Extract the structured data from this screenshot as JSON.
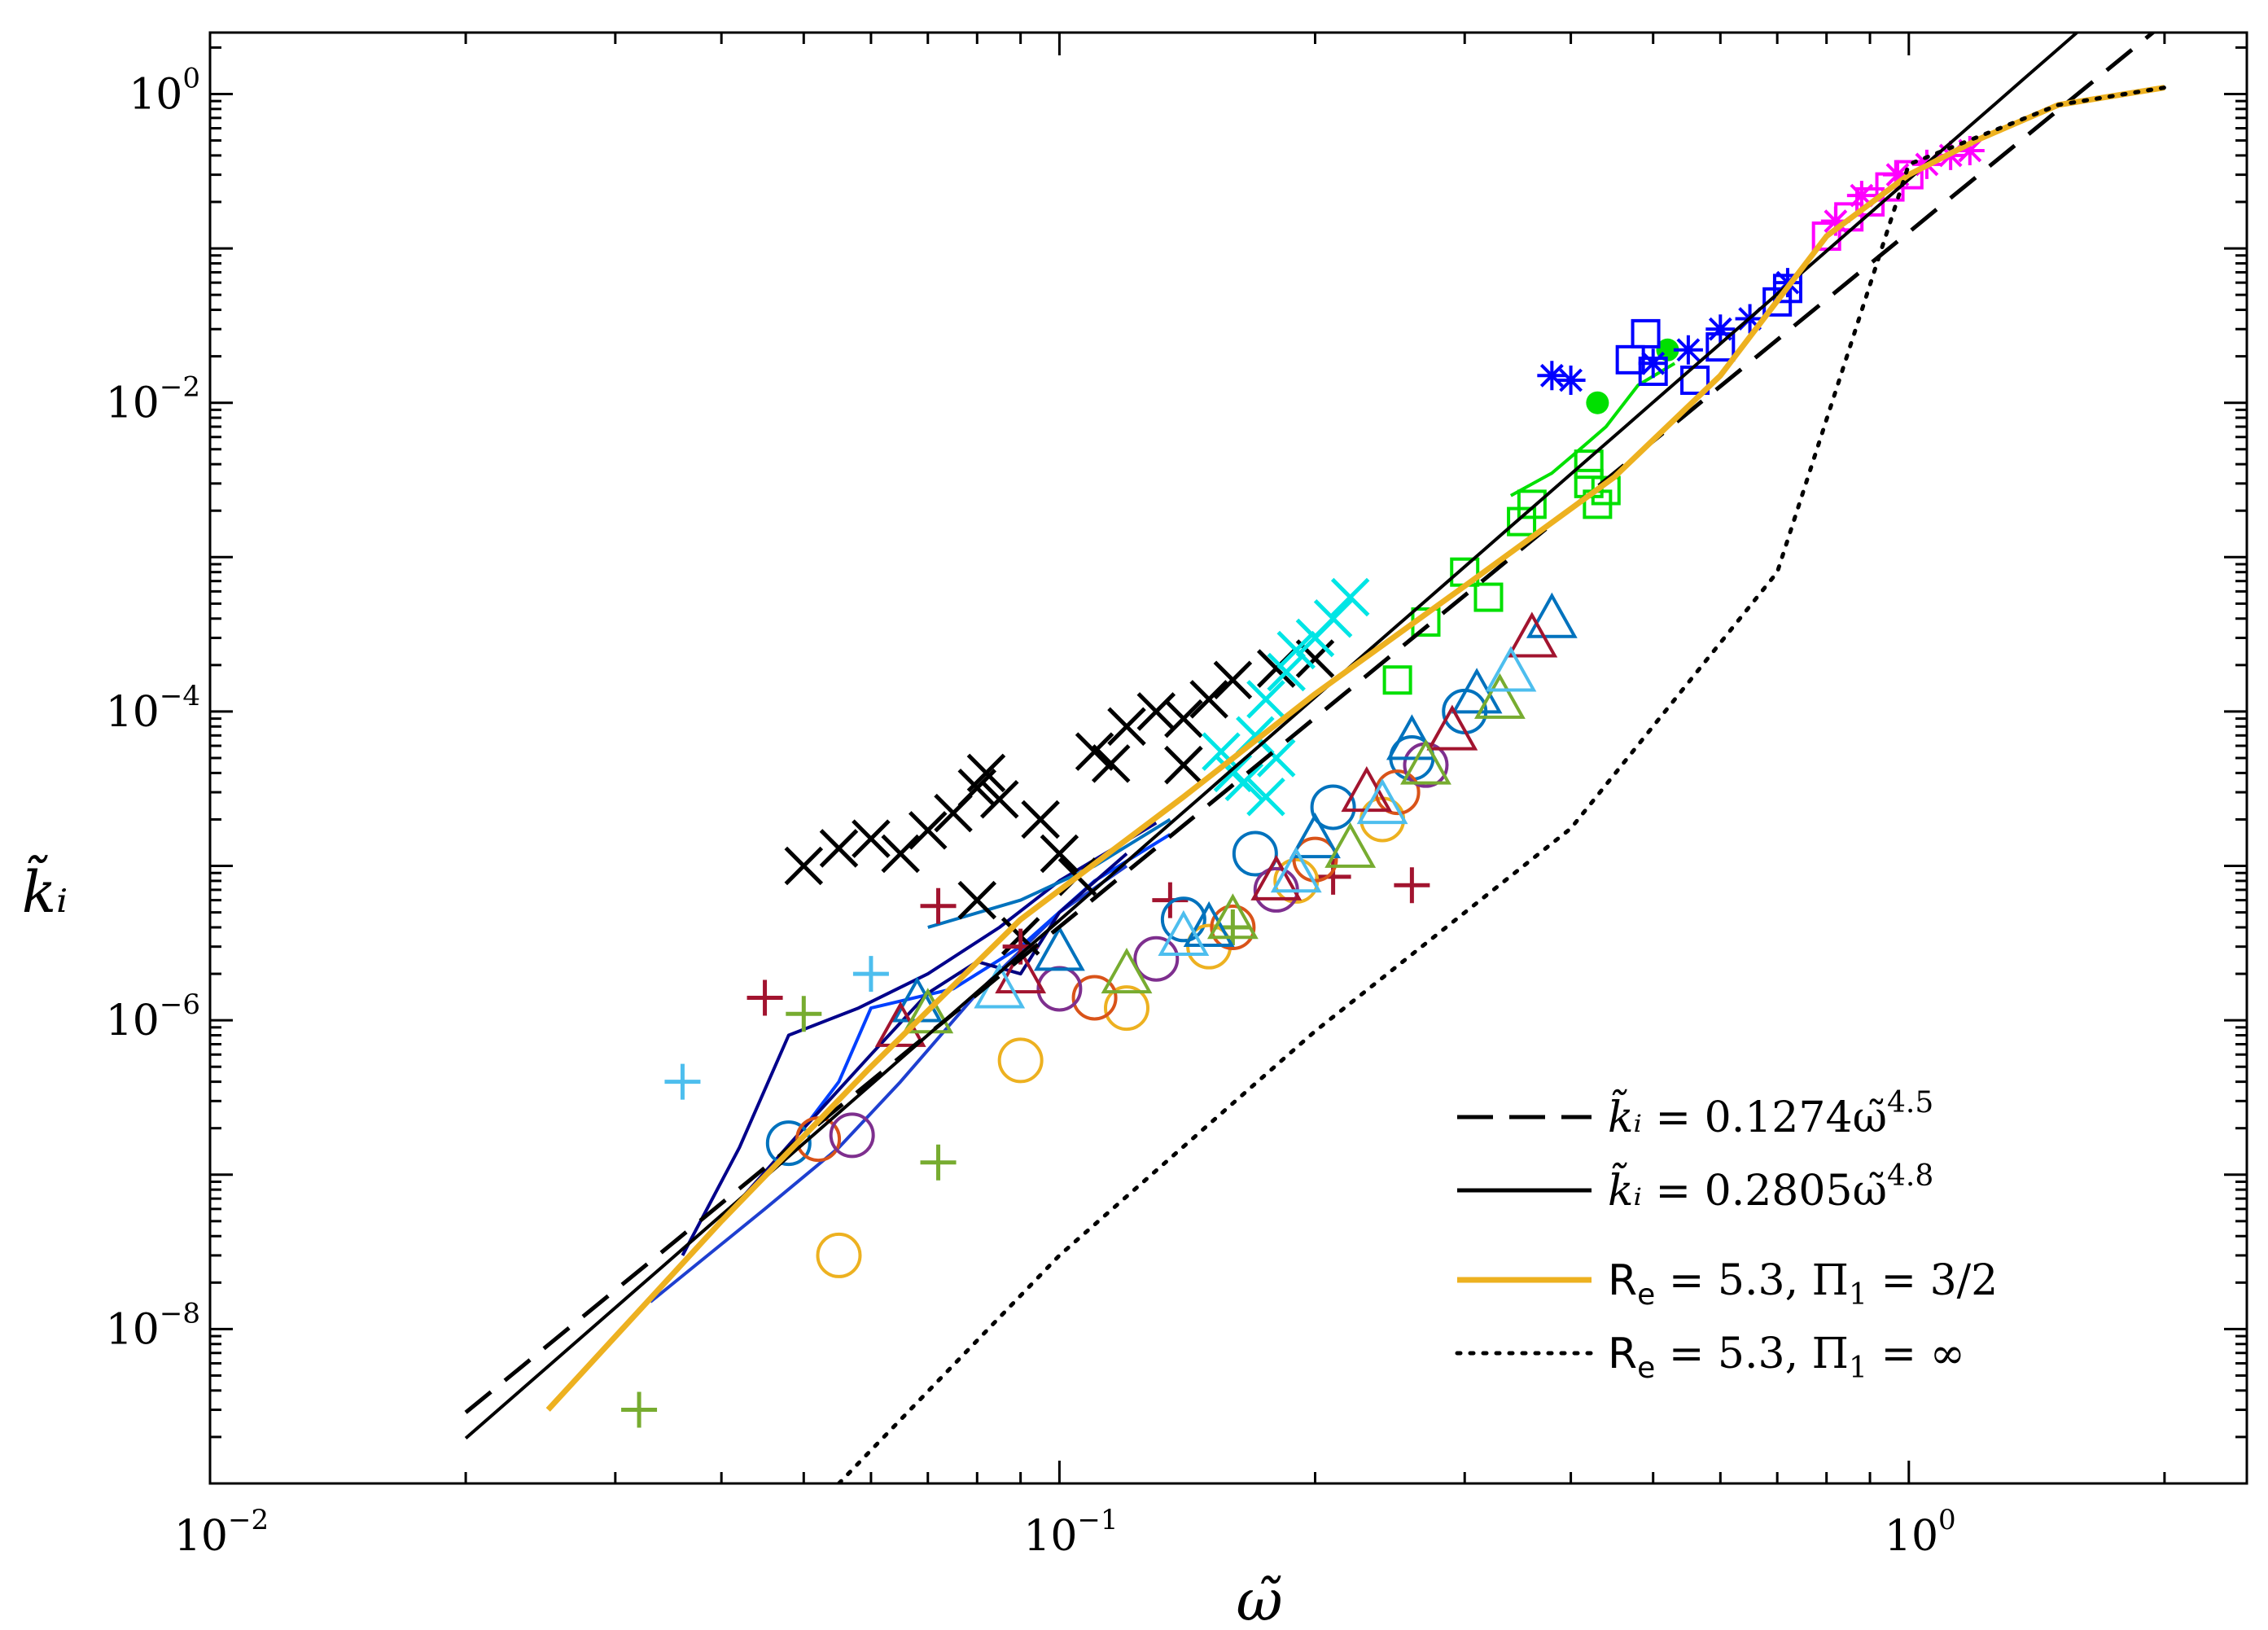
{
  "chart_data": {
    "type": "scatter",
    "xscale": "log",
    "yscale": "log",
    "xlim": [
      0.01,
      2.5
    ],
    "ylim": [
      1e-09,
      2.5
    ],
    "grid": false,
    "xlabel": "ω̃",
    "ylabel": "k̃ᵢ",
    "xticks": [
      {
        "value": 0.01,
        "base": "10",
        "exp": "−2"
      },
      {
        "value": 0.1,
        "base": "10",
        "exp": "−1"
      },
      {
        "value": 1,
        "base": "10",
        "exp": "0"
      }
    ],
    "yticks": [
      {
        "value": 1e-08,
        "base": "10",
        "exp": "−8"
      },
      {
        "value": 1e-06,
        "base": "10",
        "exp": "−6"
      },
      {
        "value": 0.0001,
        "base": "10",
        "exp": "−4"
      },
      {
        "value": 0.01,
        "base": "10",
        "exp": "−2"
      },
      {
        "value": 1,
        "base": "10",
        "exp": "0"
      }
    ],
    "legend": {
      "position": "bottom-right",
      "entries": [
        {
          "key": "fit45",
          "text": "k̃ᵢ = 0.1274ω̃^4.5",
          "lhs": "k̃ᵢ",
          "mid": " = 0.1274ω̃",
          "sup": "4.5",
          "style": "dashed",
          "color": "#000000"
        },
        {
          "key": "fit48",
          "text": "k̃ᵢ = 0.2805ω̃^4.8",
          "lhs": "k̃ᵢ",
          "mid": " = 0.2805ω̃",
          "sup": "4.8",
          "style": "solid",
          "color": "#000000"
        },
        {
          "key": "model32",
          "text": "Rₑ = 5.3, Π₁ = 3/2",
          "lhs": "R",
          "sub": "e",
          "mid": " = 5.3,  Π",
          "sub2": "1",
          "rhs": " = 3/2",
          "style": "solid",
          "color": "#EDB120"
        },
        {
          "key": "modelinf",
          "text": "Rₑ = 5.3, Π₁ = ∞",
          "lhs": "R",
          "sub": "e",
          "mid": " = 5.3,  Π",
          "sub2": "1",
          "rhs": " = ∞",
          "style": "dotted",
          "color": "#000000"
        }
      ]
    },
    "lines": [
      {
        "name": "fit-4.5",
        "coef": 0.1274,
        "exponent": 4.5,
        "xrange": [
          0.02,
          2.0
        ],
        "style": "dashed",
        "color": "#000000",
        "width": 5
      },
      {
        "name": "fit-4.8",
        "coef": 0.2805,
        "exponent": 4.8,
        "xrange": [
          0.02,
          2.0
        ],
        "style": "solid",
        "color": "#000000",
        "width": 4
      },
      {
        "name": "model-3/2",
        "style": "solid",
        "color": "#EDB120",
        "width": 7,
        "x": [
          0.025,
          0.04,
          0.06,
          0.09,
          0.14,
          0.2,
          0.3,
          0.45,
          0.6,
          0.8,
          1.0,
          1.2,
          1.5,
          2.0
        ],
        "y": [
          3e-09,
          5e-08,
          5e-07,
          4.5e-06,
          2.8e-05,
          0.00013,
          0.00065,
          0.0033,
          0.015,
          0.12,
          0.3,
          0.5,
          0.85,
          1.1
        ]
      },
      {
        "name": "model-inf",
        "style": "dotted",
        "color": "#000000",
        "width": 5,
        "x": [
          0.055,
          0.1,
          0.2,
          0.4,
          0.7,
          1.0,
          1.5,
          2.0
        ],
        "y": [
          1e-09,
          3e-08,
          8.5e-07,
          1.75e-05,
          0.0008,
          0.35,
          0.85,
          1.1
        ]
      }
    ],
    "polylines": [
      {
        "name": "blue-set-1",
        "color": "#00008B",
        "points": [
          [
            0.036,
            3e-08
          ],
          [
            0.042,
            1.5e-07
          ],
          [
            0.048,
            8e-07
          ],
          [
            0.058,
            1.2e-06
          ],
          [
            0.07,
            2e-06
          ],
          [
            0.085,
            4e-06
          ],
          [
            0.1,
            8e-06
          ],
          [
            0.13,
            1.9e-05
          ]
        ]
      },
      {
        "name": "blue-set-2",
        "color": "#1E3FD0",
        "points": [
          [
            0.033,
            1.5e-08
          ],
          [
            0.045,
            6e-08
          ],
          [
            0.055,
            1.5e-07
          ],
          [
            0.065,
            4e-07
          ],
          [
            0.08,
            1.5e-06
          ],
          [
            0.1,
            5e-06
          ],
          [
            0.12,
            1e-05
          ]
        ]
      },
      {
        "name": "blue-set-3",
        "color": "#0040FF",
        "points": [
          [
            0.05,
            2e-07
          ],
          [
            0.055,
            4e-07
          ],
          [
            0.06,
            1.2e-06
          ],
          [
            0.075,
            1.6e-06
          ],
          [
            0.09,
            3e-06
          ],
          [
            0.11,
            8e-06
          ],
          [
            0.135,
            1.6e-05
          ]
        ]
      },
      {
        "name": "blue-set-4",
        "color": "#0072BD",
        "points": [
          [
            0.07,
            4e-06
          ],
          [
            0.09,
            6e-06
          ],
          [
            0.11,
            1e-05
          ],
          [
            0.135,
            2e-05
          ]
        ]
      },
      {
        "name": "navy-set-5",
        "color": "#000080",
        "points": [
          [
            0.04,
            5e-08
          ],
          [
            0.05,
            2e-07
          ],
          [
            0.06,
            6e-07
          ],
          [
            0.07,
            1.5e-06
          ],
          [
            0.08,
            2.4e-06
          ],
          [
            0.09,
            2e-06
          ],
          [
            0.1,
            5e-06
          ],
          [
            0.12,
            1.2e-05
          ]
        ]
      },
      {
        "name": "green-set",
        "color": "#00E000",
        "points": [
          [
            0.34,
            0.0025
          ],
          [
            0.38,
            0.0035
          ],
          [
            0.41,
            0.005
          ],
          [
            0.44,
            0.007
          ],
          [
            0.48,
            0.013
          ],
          [
            0.53,
            0.018
          ]
        ]
      }
    ],
    "series": [
      {
        "name": "black-x",
        "marker": "x",
        "color": "#000000",
        "points": [
          [
            0.05,
            1e-05
          ],
          [
            0.055,
            1.3e-05
          ],
          [
            0.06,
            1.5e-05
          ],
          [
            0.065,
            1.2e-05
          ],
          [
            0.07,
            1.7e-05
          ],
          [
            0.075,
            2.2e-05
          ],
          [
            0.08,
            3.2e-05
          ],
          [
            0.082,
            4e-05
          ],
          [
            0.085,
            2.7e-05
          ],
          [
            0.08,
            6e-06
          ],
          [
            0.09,
            3.5e-06
          ],
          [
            0.095,
            2e-05
          ],
          [
            0.1,
            1.2e-05
          ],
          [
            0.105,
            8.5e-06
          ],
          [
            0.11,
            5.5e-05
          ],
          [
            0.115,
            4.6e-05
          ],
          [
            0.12,
            8e-05
          ],
          [
            0.13,
            0.0001
          ],
          [
            0.14,
            9e-05
          ],
          [
            0.15,
            0.00012
          ],
          [
            0.16,
            0.00016
          ],
          [
            0.18,
            0.00019
          ],
          [
            0.2,
            0.00022
          ],
          [
            0.14,
            4.5e-05
          ]
        ]
      },
      {
        "name": "cyan-x",
        "marker": "x",
        "color": "#00E5E5",
        "points": [
          [
            0.155,
            5.5e-05
          ],
          [
            0.16,
            4e-05
          ],
          [
            0.165,
            3.5e-05
          ],
          [
            0.17,
            7e-05
          ],
          [
            0.175,
            2.8e-05
          ],
          [
            0.18,
            5e-05
          ],
          [
            0.185,
            0.00018
          ],
          [
            0.19,
            0.00025
          ],
          [
            0.2,
            0.0003
          ],
          [
            0.21,
            0.0004
          ],
          [
            0.22,
            0.00055
          ],
          [
            0.175,
            0.00012
          ]
        ]
      },
      {
        "name": "red-plus",
        "marker": "+",
        "color": "#A2142F",
        "points": [
          [
            0.045,
            1.4e-06
          ],
          [
            0.072,
            5.5e-06
          ],
          [
            0.21,
            8.5e-06
          ],
          [
            0.26,
            7.5e-06
          ],
          [
            0.135,
            6e-06
          ],
          [
            0.09,
            3e-06
          ]
        ]
      },
      {
        "name": "green-plus",
        "marker": "+",
        "color": "#77AC30",
        "points": [
          [
            0.05,
            1.1e-06
          ],
          [
            0.072,
            1.2e-07
          ],
          [
            0.032,
            3e-09
          ],
          [
            0.16,
            4e-06
          ]
        ]
      },
      {
        "name": "lightblue-plus",
        "marker": "+",
        "color": "#4DBEEE",
        "points": [
          [
            0.036,
            4e-07
          ],
          [
            0.06,
            2e-06
          ]
        ]
      },
      {
        "name": "circles-blue",
        "marker": "o",
        "color": "#0072BD",
        "points": [
          [
            0.048,
            1.6e-07
          ],
          [
            0.14,
            4.5e-06
          ],
          [
            0.17,
            1.2e-05
          ],
          [
            0.21,
            2.4e-05
          ],
          [
            0.26,
            5e-05
          ],
          [
            0.3,
            0.0001
          ]
        ]
      },
      {
        "name": "circles-orange",
        "marker": "o",
        "color": "#EDB120",
        "points": [
          [
            0.055,
            3e-08
          ],
          [
            0.09,
            5.5e-07
          ],
          [
            0.12,
            1.2e-06
          ],
          [
            0.15,
            3e-06
          ],
          [
            0.19,
            8e-06
          ],
          [
            0.24,
            2e-05
          ]
        ]
      },
      {
        "name": "circles-red",
        "marker": "o",
        "color": "#D95319",
        "points": [
          [
            0.052,
            1.7e-07
          ],
          [
            0.11,
            1.4e-06
          ],
          [
            0.16,
            4e-06
          ],
          [
            0.2,
            1.1e-05
          ],
          [
            0.25,
            3e-05
          ]
        ]
      },
      {
        "name": "circles-purple",
        "marker": "o",
        "color": "#7E2F8E",
        "points": [
          [
            0.057,
            1.8e-07
          ],
          [
            0.1,
            1.6e-06
          ],
          [
            0.13,
            2.5e-06
          ],
          [
            0.18,
            7e-06
          ],
          [
            0.27,
            4.5e-05
          ]
        ]
      },
      {
        "name": "triangles-blue",
        "marker": "^",
        "color": "#0072BD",
        "points": [
          [
            0.068,
            1.3e-06
          ],
          [
            0.1,
            2.8e-06
          ],
          [
            0.15,
            4e-06
          ],
          [
            0.2,
            1.5e-05
          ],
          [
            0.26,
            6.5e-05
          ],
          [
            0.31,
            0.00013
          ],
          [
            0.38,
            0.0004
          ]
        ]
      },
      {
        "name": "triangles-red",
        "marker": "^",
        "color": "#A2142F",
        "points": [
          [
            0.065,
            9e-07
          ],
          [
            0.09,
            2e-06
          ],
          [
            0.18,
            8e-06
          ],
          [
            0.23,
            3e-05
          ],
          [
            0.29,
            7.5e-05
          ],
          [
            0.36,
            0.0003
          ]
        ]
      },
      {
        "name": "triangles-green",
        "marker": "^",
        "color": "#77AC30",
        "points": [
          [
            0.07,
            1.1e-06
          ],
          [
            0.12,
            2e-06
          ],
          [
            0.16,
            4.5e-06
          ],
          [
            0.22,
            1.3e-05
          ],
          [
            0.27,
            4.5e-05
          ],
          [
            0.33,
            0.00012
          ]
        ]
      },
      {
        "name": "triangles-lightblue",
        "marker": "^",
        "color": "#4DBEEE",
        "points": [
          [
            0.085,
            1.6e-06
          ],
          [
            0.14,
            3.5e-06
          ],
          [
            0.19,
            9e-06
          ],
          [
            0.24,
            2.5e-05
          ],
          [
            0.34,
            0.00018
          ]
        ]
      },
      {
        "name": "green-squares",
        "marker": "s",
        "color": "#00E000",
        "points": [
          [
            0.25,
            0.00016
          ],
          [
            0.27,
            0.00038
          ],
          [
            0.3,
            0.0008
          ],
          [
            0.32,
            0.00055
          ],
          [
            0.35,
            0.0017
          ],
          [
            0.36,
            0.0022
          ],
          [
            0.42,
            0.004
          ],
          [
            0.43,
            0.0022
          ],
          [
            0.42,
            0.003
          ],
          [
            0.44,
            0.0027
          ]
        ]
      },
      {
        "name": "green-dots",
        "marker": "dot",
        "color": "#00E000",
        "points": [
          [
            0.43,
            0.01
          ],
          [
            0.52,
            0.022
          ]
        ]
      },
      {
        "name": "blue-squares",
        "marker": "s",
        "color": "#0000FF",
        "points": [
          [
            0.47,
            0.019
          ],
          [
            0.49,
            0.028
          ],
          [
            0.56,
            0.014
          ],
          [
            0.6,
            0.023
          ],
          [
            0.7,
            0.045
          ],
          [
            0.72,
            0.055
          ],
          [
            0.5,
            0.016
          ]
        ]
      },
      {
        "name": "blue-asterisks",
        "marker": "*",
        "color": "#0000FF",
        "points": [
          [
            0.38,
            0.015
          ],
          [
            0.4,
            0.014
          ],
          [
            0.5,
            0.018
          ],
          [
            0.55,
            0.022
          ],
          [
            0.6,
            0.03
          ],
          [
            0.65,
            0.035
          ],
          [
            0.72,
            0.06
          ]
        ]
      },
      {
        "name": "magenta-squares",
        "marker": "s",
        "color": "#FF00FF",
        "points": [
          [
            0.8,
            0.12
          ],
          [
            0.85,
            0.16
          ],
          [
            0.9,
            0.2
          ],
          [
            0.95,
            0.25
          ],
          [
            1.0,
            0.3
          ]
        ]
      },
      {
        "name": "magenta-asterisks",
        "marker": "*",
        "color": "#FF00FF",
        "points": [
          [
            0.82,
            0.15
          ],
          [
            0.88,
            0.22
          ],
          [
            0.97,
            0.3
          ],
          [
            1.05,
            0.35
          ],
          [
            1.12,
            0.4
          ],
          [
            1.18,
            0.43
          ]
        ]
      }
    ]
  }
}
